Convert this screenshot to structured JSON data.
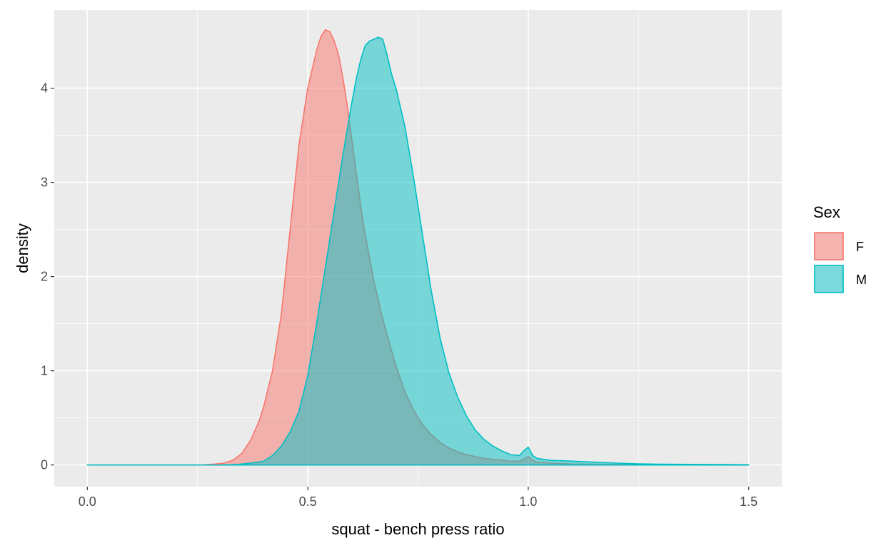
{
  "chart_data": {
    "type": "area",
    "title": "",
    "xlabel": "squat - bench press ratio",
    "ylabel": "density",
    "xlim": [
      -0.075,
      1.575
    ],
    "ylim": [
      -0.23,
      4.83
    ],
    "xticks": [
      0.0,
      0.5,
      1.0,
      1.5
    ],
    "xtick_labels": [
      "0.0",
      "0.5",
      "1.0",
      "1.5"
    ],
    "yticks": [
      0,
      1,
      2,
      3,
      4
    ],
    "ytick_labels": [
      "0",
      "1",
      "2",
      "3",
      "4"
    ],
    "grid": true,
    "legend": {
      "title": "Sex",
      "position": "right"
    },
    "series": [
      {
        "name": "F",
        "color": "#F8766D",
        "fill": "#F8766D",
        "fill_opacity": 0.5,
        "x": [
          0.0,
          0.1,
          0.2,
          0.26,
          0.29,
          0.31,
          0.33,
          0.35,
          0.37,
          0.39,
          0.4,
          0.42,
          0.44,
          0.46,
          0.48,
          0.5,
          0.51,
          0.52,
          0.53,
          0.54,
          0.55,
          0.56,
          0.57,
          0.58,
          0.59,
          0.6,
          0.61,
          0.62,
          0.63,
          0.64,
          0.65,
          0.66,
          0.67,
          0.68,
          0.7,
          0.72,
          0.74,
          0.76,
          0.78,
          0.8,
          0.82,
          0.84,
          0.86,
          0.88,
          0.9,
          0.92,
          0.94,
          0.96,
          0.98,
          0.99,
          1.0,
          1.01,
          1.02,
          1.05,
          1.1,
          1.2,
          1.3,
          1.4,
          1.5
        ],
        "y": [
          0.0,
          0.0,
          0.0,
          0.0,
          0.01,
          0.02,
          0.05,
          0.12,
          0.26,
          0.47,
          0.62,
          1.0,
          1.6,
          2.5,
          3.4,
          4.0,
          4.2,
          4.4,
          4.55,
          4.62,
          4.6,
          4.5,
          4.35,
          4.1,
          3.8,
          3.45,
          3.1,
          2.75,
          2.45,
          2.2,
          1.95,
          1.75,
          1.55,
          1.38,
          1.05,
          0.78,
          0.58,
          0.43,
          0.32,
          0.24,
          0.18,
          0.14,
          0.11,
          0.09,
          0.07,
          0.06,
          0.05,
          0.04,
          0.04,
          0.06,
          0.09,
          0.05,
          0.03,
          0.02,
          0.01,
          0.005,
          0.003,
          0.002,
          0.001
        ]
      },
      {
        "name": "M",
        "color": "#00BFC4",
        "fill": "#00BFC4",
        "fill_opacity": 0.5,
        "x": [
          0.0,
          0.2,
          0.3,
          0.34,
          0.37,
          0.4,
          0.42,
          0.44,
          0.46,
          0.48,
          0.5,
          0.52,
          0.54,
          0.56,
          0.58,
          0.6,
          0.61,
          0.62,
          0.63,
          0.64,
          0.65,
          0.66,
          0.67,
          0.68,
          0.69,
          0.7,
          0.72,
          0.74,
          0.76,
          0.78,
          0.8,
          0.82,
          0.84,
          0.86,
          0.88,
          0.9,
          0.92,
          0.94,
          0.96,
          0.98,
          0.99,
          1.0,
          1.01,
          1.02,
          1.05,
          1.1,
          1.15,
          1.2,
          1.25,
          1.3,
          1.4,
          1.5
        ],
        "y": [
          0.0,
          0.0,
          0.0,
          0.005,
          0.02,
          0.04,
          0.1,
          0.2,
          0.35,
          0.57,
          0.95,
          1.5,
          2.1,
          2.7,
          3.3,
          3.85,
          4.1,
          4.3,
          4.45,
          4.5,
          4.52,
          4.54,
          4.52,
          4.35,
          4.15,
          4.0,
          3.6,
          3.05,
          2.45,
          1.85,
          1.35,
          0.98,
          0.72,
          0.52,
          0.37,
          0.27,
          0.2,
          0.15,
          0.11,
          0.1,
          0.15,
          0.19,
          0.1,
          0.07,
          0.05,
          0.04,
          0.03,
          0.02,
          0.012,
          0.008,
          0.005,
          0.003
        ]
      }
    ]
  }
}
